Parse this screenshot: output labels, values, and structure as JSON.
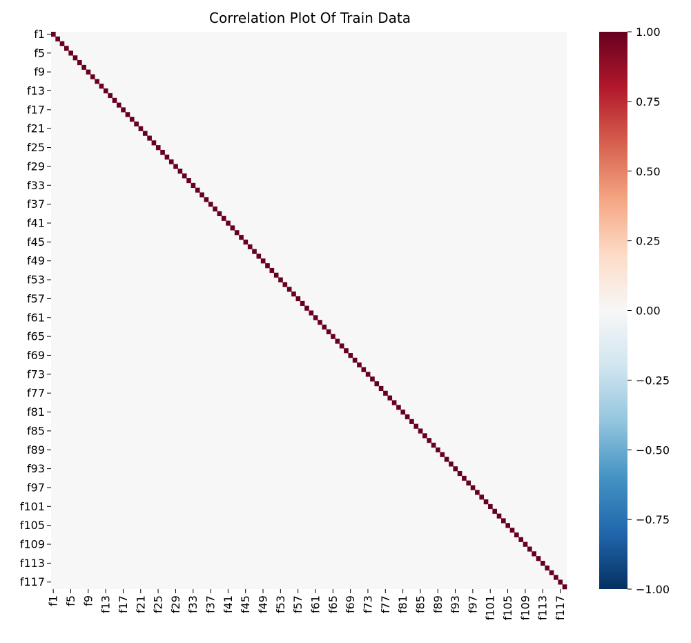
{
  "chart_data": {
    "type": "heatmap",
    "title": "Correlation Plot Of Train Data",
    "xlabel": "",
    "ylabel": "",
    "variables": [
      "f1",
      "f2",
      "f3",
      "f4",
      "f5",
      "f6",
      "f7",
      "f8",
      "f9",
      "f10",
      "f11",
      "f12",
      "f13",
      "f14",
      "f15",
      "f16",
      "f17",
      "f18",
      "f19",
      "f20",
      "f21",
      "f22",
      "f23",
      "f24",
      "f25",
      "f26",
      "f27",
      "f28",
      "f29",
      "f30",
      "f31",
      "f32",
      "f33",
      "f34",
      "f35",
      "f36",
      "f37",
      "f38",
      "f39",
      "f40",
      "f41",
      "f42",
      "f43",
      "f44",
      "f45",
      "f46",
      "f47",
      "f48",
      "f49",
      "f50",
      "f51",
      "f52",
      "f53",
      "f54",
      "f55",
      "f56",
      "f57",
      "f58",
      "f59",
      "f60",
      "f61",
      "f62",
      "f63",
      "f64",
      "f65",
      "f66",
      "f67",
      "f68",
      "f69",
      "f70",
      "f71",
      "f72",
      "f73",
      "f74",
      "f75",
      "f76",
      "f77",
      "f78",
      "f79",
      "f80",
      "f81",
      "f82",
      "f83",
      "f84",
      "f85",
      "f86",
      "f87",
      "f88",
      "f89",
      "f90",
      "f91",
      "f92",
      "f93",
      "f94",
      "f95",
      "f96",
      "f97",
      "f98",
      "f99",
      "f100",
      "f101",
      "f102",
      "f103",
      "f104",
      "f105",
      "f106",
      "f107",
      "f108",
      "f109",
      "f110",
      "f111",
      "f112",
      "f113",
      "f114",
      "f115",
      "f116",
      "f117",
      "f118"
    ],
    "tick_labels": [
      "f1",
      "f5",
      "f9",
      "f13",
      "f17",
      "f21",
      "f25",
      "f29",
      "f33",
      "f37",
      "f41",
      "f45",
      "f49",
      "f53",
      "f57",
      "f61",
      "f65",
      "f69",
      "f73",
      "f77",
      "f81",
      "f85",
      "f89",
      "f93",
      "f97",
      "f101",
      "f105",
      "f109",
      "f113",
      "f117"
    ],
    "tick_step": 4,
    "diagonal_value": 1.0,
    "off_diagonal_value": 0.0,
    "colorbar": {
      "min": -1.0,
      "max": 1.0,
      "ticks": [
        "1.00",
        "0.75",
        "0.50",
        "0.25",
        "0.00",
        "−0.25",
        "−0.50",
        "−0.75",
        "−1.00"
      ],
      "tick_values": [
        1.0,
        0.75,
        0.5,
        0.25,
        0.0,
        -0.25,
        -0.5,
        -0.75,
        -1.0
      ],
      "colormap": "RdBu_r",
      "colors": [
        "#67001f",
        "#b2182b",
        "#d6604d",
        "#f4a582",
        "#fddbc7",
        "#f7f7f7",
        "#d1e5f0",
        "#92c5de",
        "#4393c3",
        "#2166ac",
        "#053061"
      ]
    },
    "grid": false,
    "legend": "colorbar-right"
  }
}
